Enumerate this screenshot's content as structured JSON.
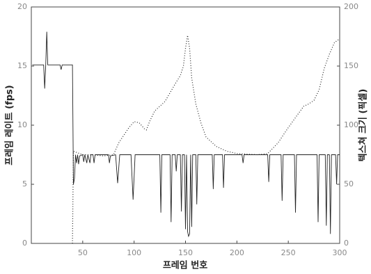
{
  "chart_data": {
    "type": "line",
    "x_label": "프레임 번호",
    "y_label": "프레임 레이트 (fps)",
    "y2_label": "텍스쳐 크기 (픽셀)",
    "xlim": [
      0,
      300
    ],
    "xticks": [
      50,
      100,
      150,
      200,
      250,
      300
    ],
    "ylim": [
      0,
      20
    ],
    "yticks": [
      0,
      5,
      10,
      15,
      20
    ],
    "y2lim": [
      0,
      200
    ],
    "y2ticks": [
      0,
      50,
      100,
      150,
      200
    ],
    "series": [
      {
        "color": "#222222",
        "style": "solid",
        "x": [
          1,
          12,
          13,
          14,
          15,
          16,
          28,
          29,
          30,
          40,
          41,
          42,
          43,
          44,
          45,
          46,
          47,
          50,
          51,
          52,
          54,
          55,
          57,
          58,
          60,
          61,
          62,
          75,
          76,
          77,
          82,
          84,
          86,
          97,
          99,
          101,
          125,
          126,
          127,
          135,
          136,
          137,
          140,
          141,
          142,
          145,
          146,
          147,
          149,
          150,
          151,
          152,
          153,
          154,
          155,
          156,
          157,
          160,
          161,
          162,
          176,
          177,
          178,
          186,
          187,
          188,
          205,
          206,
          207,
          230,
          231,
          232,
          243,
          244,
          245,
          256,
          257,
          258,
          278,
          279,
          280,
          286,
          287,
          288,
          290,
          291,
          292,
          296,
          297,
          298,
          300
        ],
        "values": [
          15.1,
          15.1,
          13.1,
          15.1,
          17.9,
          15.1,
          15.1,
          14.7,
          15.1,
          15.1,
          5.0,
          5.5,
          7.5,
          6.8,
          7.5,
          6.7,
          7.4,
          7.5,
          6.9,
          7.5,
          6.8,
          7.5,
          6.8,
          7.5,
          7.5,
          6.8,
          7.5,
          7.5,
          6.8,
          7.4,
          7.5,
          5.1,
          7.5,
          7.5,
          3.7,
          7.5,
          7.5,
          2.6,
          7.5,
          7.5,
          1.8,
          7.5,
          7.5,
          6.1,
          7.5,
          7.5,
          2.7,
          7.5,
          7.5,
          1.2,
          7.5,
          1.0,
          0.6,
          0.8,
          7.5,
          1.4,
          7.5,
          7.5,
          3.3,
          7.5,
          7.5,
          4.6,
          7.5,
          7.5,
          4.7,
          7.5,
          7.5,
          6.8,
          7.5,
          7.5,
          5.2,
          7.5,
          7.5,
          3.6,
          7.5,
          7.5,
          2.6,
          7.5,
          7.5,
          1.8,
          7.5,
          7.5,
          1.5,
          7.5,
          7.5,
          0.8,
          7.5,
          7.5,
          5.0,
          7.5,
          7.5
        ]
      },
      {
        "color": "#222222",
        "style": "dotted",
        "axis": "y2",
        "x": [
          40,
          41,
          50,
          60,
          70,
          80,
          85,
          95,
          100,
          105,
          110,
          112,
          115,
          120,
          130,
          140,
          145,
          148,
          150,
          152,
          154,
          156,
          160,
          165,
          170,
          180,
          190,
          200,
          220,
          230,
          240,
          250,
          260,
          265,
          270,
          275,
          280,
          285,
          290,
          295,
          300
        ],
        "values": [
          0,
          78,
          75,
          75,
          74,
          75,
          85,
          98,
          103,
          102,
          97,
          96,
          103,
          112,
          120,
          135,
          142,
          150,
          165,
          176,
          165,
          140,
          118,
          102,
          90,
          82,
          78,
          76,
          75,
          76,
          85,
          98,
          110,
          116,
          118,
          121,
          130,
          148,
          160,
          170,
          173
        ]
      }
    ]
  }
}
